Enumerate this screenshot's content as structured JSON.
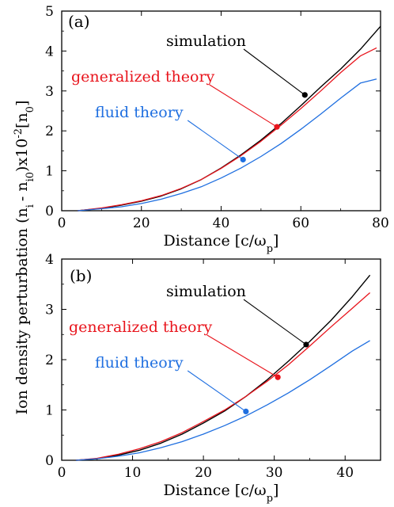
{
  "figure": {
    "ylabel_shared": "Ion density perturbation (n",
    "ylabel_sub_i": "i",
    "ylabel_mid": "- n",
    "ylabel_sub_i0": "i0",
    "ylabel_x": ")x10",
    "ylabel_sup": "-2",
    "ylabel_unit_open": "[n",
    "ylabel_sub_0": "0",
    "ylabel_unit_close": "]"
  },
  "colors": {
    "simulation": "#000000",
    "generalized": "#e8141c",
    "fluid": "#1f6fe0"
  },
  "chart_data": [
    {
      "type": "line",
      "panel_label": "(a)",
      "xlabel": "Distance [c/ω",
      "xlabel_sub": "p",
      "xlabel_close": "]",
      "xlim": [
        0,
        80
      ],
      "ylim": [
        0,
        5
      ],
      "xticks": [
        "0",
        "20",
        "40",
        "60",
        "80"
      ],
      "yticks": [
        "0",
        "1",
        "2",
        "3",
        "4",
        "5"
      ],
      "xtick_values": [
        0,
        20,
        40,
        60,
        80
      ],
      "ytick_values": [
        0,
        1,
        2,
        3,
        4,
        5
      ],
      "series": [
        {
          "name": "simulation",
          "x": [
            4,
            10,
            15,
            20,
            25,
            30,
            35,
            40,
            45,
            50,
            55,
            60,
            65,
            70,
            75,
            80
          ],
          "y": [
            0.0,
            0.06,
            0.14,
            0.24,
            0.37,
            0.55,
            0.78,
            1.07,
            1.4,
            1.77,
            2.18,
            2.63,
            3.1,
            3.55,
            4.05,
            4.62
          ]
        },
        {
          "name": "generalized theory",
          "x": [
            4,
            10,
            15,
            20,
            25,
            30,
            35,
            40,
            45,
            50,
            55,
            60,
            65,
            70,
            75,
            79
          ],
          "y": [
            0.0,
            0.07,
            0.15,
            0.25,
            0.38,
            0.56,
            0.78,
            1.06,
            1.38,
            1.74,
            2.14,
            2.56,
            3.0,
            3.46,
            3.88,
            4.08
          ]
        },
        {
          "name": "fluid theory",
          "x": [
            4,
            10,
            15,
            20,
            25,
            30,
            35,
            40,
            45,
            50,
            55,
            60,
            65,
            70,
            75,
            79
          ],
          "y": [
            0.0,
            0.05,
            0.1,
            0.18,
            0.29,
            0.43,
            0.6,
            0.82,
            1.07,
            1.36,
            1.68,
            2.04,
            2.42,
            2.82,
            3.2,
            3.3
          ]
        }
      ],
      "annotations": [
        {
          "text": "simulation",
          "series": "simulation",
          "point": [
            61,
            2.9
          ]
        },
        {
          "text": "generalized theory",
          "series": "generalized theory",
          "point": [
            54,
            2.1
          ]
        },
        {
          "text": "fluid theory",
          "series": "fluid theory",
          "point": [
            45.5,
            1.28
          ]
        }
      ]
    },
    {
      "type": "line",
      "panel_label": "(b)",
      "xlabel": "Distance [c/ω",
      "xlabel_sub": "p",
      "xlabel_close": "]",
      "xlim": [
        0,
        45
      ],
      "ylim": [
        0,
        4
      ],
      "xticks": [
        "0",
        "10",
        "20",
        "30",
        "40"
      ],
      "yticks": [
        "0",
        "1",
        "2",
        "3",
        "4"
      ],
      "xtick_values": [
        0,
        10,
        20,
        30,
        40
      ],
      "ytick_values": [
        0,
        1,
        2,
        3,
        4
      ],
      "series": [
        {
          "name": "simulation",
          "x": [
            2,
            5,
            8,
            11,
            14,
            17,
            20,
            23,
            26,
            29,
            32,
            35,
            38,
            41,
            43.5
          ],
          "y": [
            0.0,
            0.03,
            0.1,
            0.2,
            0.34,
            0.52,
            0.74,
            0.98,
            1.27,
            1.6,
            1.97,
            2.36,
            2.78,
            3.25,
            3.68
          ]
        },
        {
          "name": "generalized theory",
          "x": [
            2,
            5,
            8,
            11,
            14,
            17,
            20,
            23,
            26,
            29,
            32,
            35,
            38,
            41,
            43.5
          ],
          "y": [
            0.0,
            0.04,
            0.12,
            0.23,
            0.37,
            0.55,
            0.77,
            1.0,
            1.27,
            1.57,
            1.9,
            2.27,
            2.65,
            3.02,
            3.33
          ]
        },
        {
          "name": "fluid theory",
          "x": [
            2,
            5,
            8,
            11,
            14,
            17,
            20,
            23,
            26,
            29,
            32,
            35,
            38,
            41,
            43.5
          ],
          "y": [
            0.0,
            0.03,
            0.08,
            0.15,
            0.25,
            0.37,
            0.52,
            0.69,
            0.88,
            1.1,
            1.34,
            1.6,
            1.88,
            2.17,
            2.38
          ]
        }
      ],
      "annotations": [
        {
          "text": "simulation",
          "series": "simulation",
          "point": [
            34.5,
            2.3
          ]
        },
        {
          "text": "generalized theory",
          "series": "generalized theory",
          "point": [
            30.5,
            1.65
          ]
        },
        {
          "text": "fluid theory",
          "series": "fluid theory",
          "point": [
            26,
            0.97
          ]
        }
      ]
    }
  ]
}
